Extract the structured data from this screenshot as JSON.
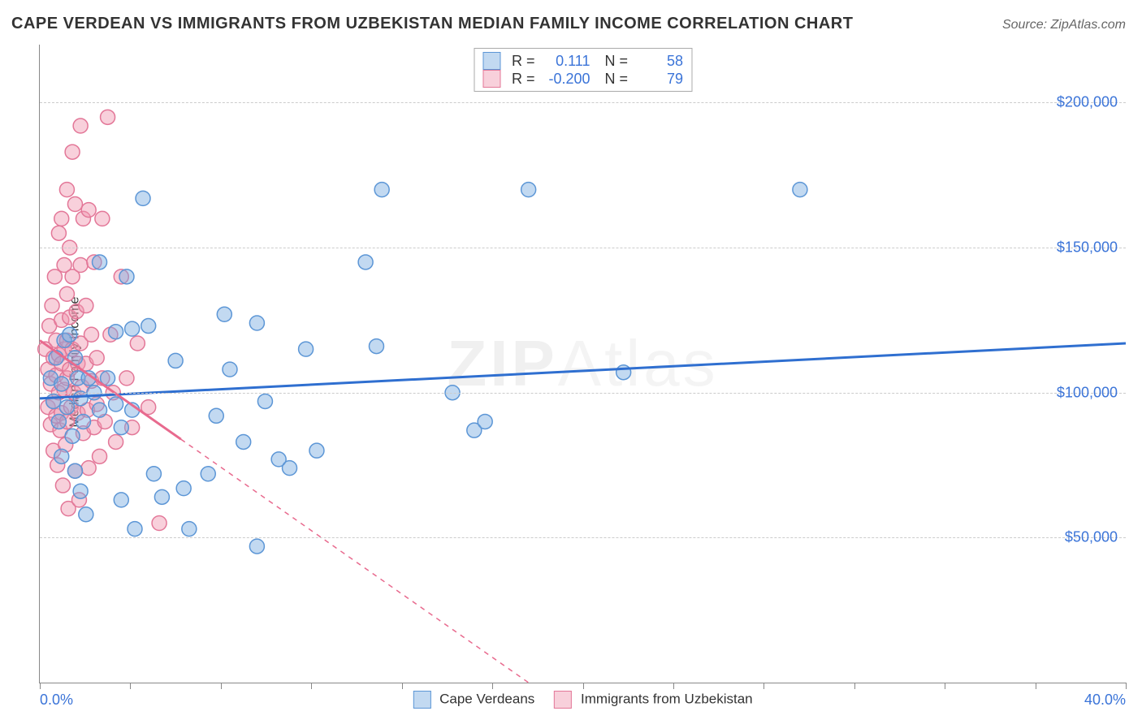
{
  "title": "CAPE VERDEAN VS IMMIGRANTS FROM UZBEKISTAN MEDIAN FAMILY INCOME CORRELATION CHART",
  "source_label": "Source: ZipAtlas.com",
  "ylabel": "Median Family Income",
  "watermark": {
    "part1": "ZIP",
    "part2": "Atlas"
  },
  "chart": {
    "type": "scatter",
    "xlim": [
      0,
      40
    ],
    "ylim": [
      0,
      220000
    ],
    "x_tick_labels": {
      "left": "0.0%",
      "right": "40.0%"
    },
    "x_ticks_pct": [
      0,
      3.33,
      6.67,
      10,
      13.33,
      16.67,
      20,
      23.33,
      26.67,
      30,
      33.33,
      36.67,
      40
    ],
    "grid_color": "#cccccc",
    "ytick_color": "#3b74d8",
    "yticks": [
      {
        "value": 50000,
        "label": "$50,000"
      },
      {
        "value": 100000,
        "label": "$100,000"
      },
      {
        "value": 150000,
        "label": "$150,000"
      },
      {
        "value": 200000,
        "label": "$200,000"
      }
    ],
    "series": [
      {
        "name": "Cape Verdeans",
        "color_fill": "rgba(120,170,225,0.45)",
        "color_stroke": "#5c96d6",
        "line_color": "#2f6fd0",
        "marker_radius": 9,
        "regression": {
          "r": "0.111",
          "n": "58",
          "x1": 0,
          "y1": 98000,
          "x2": 40,
          "y2": 117000,
          "dashed": false
        },
        "points": [
          [
            0.4,
            105000
          ],
          [
            0.5,
            97000
          ],
          [
            0.6,
            112000
          ],
          [
            0.7,
            90000
          ],
          [
            0.8,
            103000
          ],
          [
            0.8,
            78000
          ],
          [
            0.9,
            118000
          ],
          [
            1.0,
            95000
          ],
          [
            1.1,
            120000
          ],
          [
            1.2,
            85000
          ],
          [
            1.3,
            112000
          ],
          [
            1.3,
            73000
          ],
          [
            1.4,
            105000
          ],
          [
            1.5,
            98000
          ],
          [
            1.5,
            66000
          ],
          [
            1.6,
            90000
          ],
          [
            1.7,
            58000
          ],
          [
            1.8,
            105000
          ],
          [
            2.0,
            100000
          ],
          [
            2.2,
            145000
          ],
          [
            2.2,
            94000
          ],
          [
            2.5,
            105000
          ],
          [
            2.8,
            96000
          ],
          [
            2.8,
            121000
          ],
          [
            3.0,
            88000
          ],
          [
            3.0,
            63000
          ],
          [
            3.2,
            140000
          ],
          [
            3.4,
            122000
          ],
          [
            3.4,
            94000
          ],
          [
            3.5,
            53000
          ],
          [
            3.8,
            167000
          ],
          [
            4.0,
            123000
          ],
          [
            4.2,
            72000
          ],
          [
            4.5,
            64000
          ],
          [
            5.0,
            111000
          ],
          [
            5.3,
            67000
          ],
          [
            5.5,
            53000
          ],
          [
            6.2,
            72000
          ],
          [
            6.5,
            92000
          ],
          [
            6.8,
            127000
          ],
          [
            7.0,
            108000
          ],
          [
            7.5,
            83000
          ],
          [
            8.0,
            124000
          ],
          [
            8.0,
            47000
          ],
          [
            8.3,
            97000
          ],
          [
            8.8,
            77000
          ],
          [
            9.2,
            74000
          ],
          [
            9.8,
            115000
          ],
          [
            10.2,
            80000
          ],
          [
            12.0,
            145000
          ],
          [
            12.4,
            116000
          ],
          [
            12.6,
            170000
          ],
          [
            15.2,
            100000
          ],
          [
            16.0,
            87000
          ],
          [
            16.4,
            90000
          ],
          [
            18.0,
            170000
          ],
          [
            21.5,
            107000
          ],
          [
            28.0,
            170000
          ]
        ]
      },
      {
        "name": "Immigrants from Uzbekistan",
        "color_fill": "rgba(240,150,175,0.45)",
        "color_stroke": "#e37798",
        "line_color": "#e86a8e",
        "marker_radius": 9,
        "regression": {
          "r": "-0.200",
          "n": "79",
          "x1": 0,
          "y1": 118000,
          "x2": 18,
          "y2": 0,
          "dashed_after_x": 5.2
        },
        "points": [
          [
            0.2,
            115000
          ],
          [
            0.3,
            108000
          ],
          [
            0.3,
            95000
          ],
          [
            0.35,
            123000
          ],
          [
            0.4,
            103000
          ],
          [
            0.4,
            89000
          ],
          [
            0.45,
            130000
          ],
          [
            0.5,
            112000
          ],
          [
            0.5,
            97000
          ],
          [
            0.5,
            80000
          ],
          [
            0.55,
            140000
          ],
          [
            0.6,
            118000
          ],
          [
            0.6,
            106000
          ],
          [
            0.6,
            92000
          ],
          [
            0.65,
            75000
          ],
          [
            0.7,
            155000
          ],
          [
            0.7,
            113000
          ],
          [
            0.7,
            100000
          ],
          [
            0.75,
            87000
          ],
          [
            0.8,
            160000
          ],
          [
            0.8,
            125000
          ],
          [
            0.8,
            110000
          ],
          [
            0.8,
            93000
          ],
          [
            0.85,
            68000
          ],
          [
            0.9,
            144000
          ],
          [
            0.9,
            115000
          ],
          [
            0.9,
            101000
          ],
          [
            0.95,
            82000
          ],
          [
            1.0,
            170000
          ],
          [
            1.0,
            134000
          ],
          [
            1.0,
            118000
          ],
          [
            1.0,
            105000
          ],
          [
            1.0,
            90000
          ],
          [
            1.05,
            60000
          ],
          [
            1.1,
            150000
          ],
          [
            1.1,
            126000
          ],
          [
            1.1,
            108000
          ],
          [
            1.15,
            95000
          ],
          [
            1.2,
            183000
          ],
          [
            1.2,
            140000
          ],
          [
            1.2,
            115000
          ],
          [
            1.25,
            100000
          ],
          [
            1.3,
            73000
          ],
          [
            1.3,
            165000
          ],
          [
            1.35,
            128000
          ],
          [
            1.4,
            110000
          ],
          [
            1.4,
            93000
          ],
          [
            1.45,
            63000
          ],
          [
            1.5,
            192000
          ],
          [
            1.5,
            144000
          ],
          [
            1.5,
            117000
          ],
          [
            1.55,
            102000
          ],
          [
            1.6,
            86000
          ],
          [
            1.6,
            160000
          ],
          [
            1.7,
            130000
          ],
          [
            1.7,
            110000
          ],
          [
            1.75,
            94000
          ],
          [
            1.8,
            74000
          ],
          [
            1.8,
            163000
          ],
          [
            1.9,
            120000
          ],
          [
            1.9,
            104000
          ],
          [
            2.0,
            88000
          ],
          [
            2.0,
            145000
          ],
          [
            2.1,
            112000
          ],
          [
            2.1,
            96000
          ],
          [
            2.2,
            78000
          ],
          [
            2.3,
            160000
          ],
          [
            2.3,
            105000
          ],
          [
            2.4,
            90000
          ],
          [
            2.5,
            195000
          ],
          [
            2.6,
            120000
          ],
          [
            2.7,
            100000
          ],
          [
            2.8,
            83000
          ],
          [
            3.0,
            140000
          ],
          [
            3.2,
            105000
          ],
          [
            3.4,
            88000
          ],
          [
            3.6,
            117000
          ],
          [
            4.0,
            95000
          ],
          [
            4.4,
            55000
          ]
        ]
      }
    ]
  }
}
